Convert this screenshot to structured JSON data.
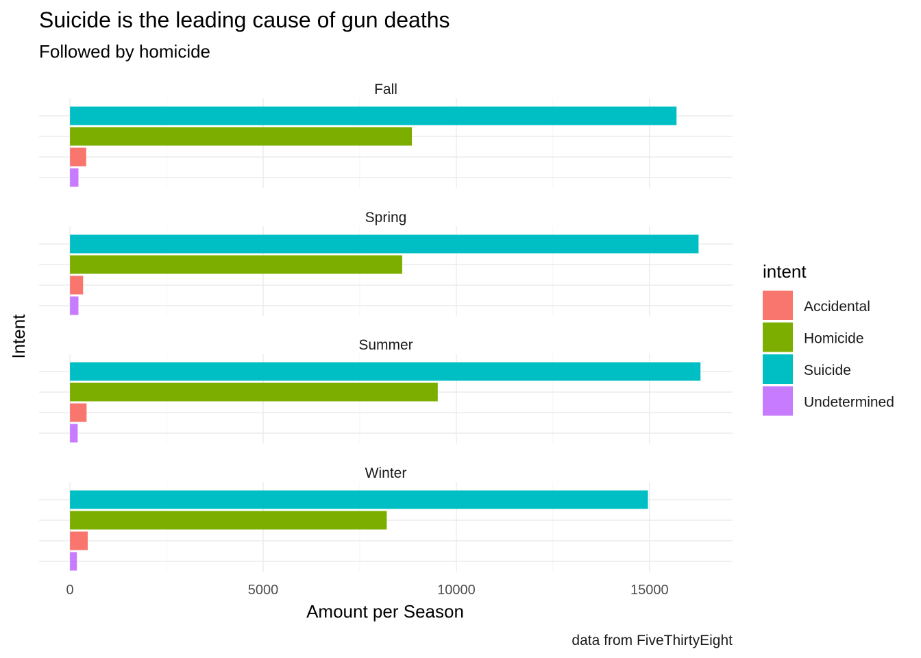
{
  "chart_data": {
    "type": "bar",
    "orientation": "horizontal",
    "title": "Suicide is the leading cause of gun deaths",
    "subtitle": "Followed by homicide",
    "xlabel": "Amount per Season",
    "ylabel": "Intent",
    "caption": "data from FiveThirtyEight",
    "xlim": [
      -800,
      17150
    ],
    "xticks": [
      0,
      5000,
      10000,
      15000
    ],
    "xtick_labels": [
      "0",
      "5000",
      "10000",
      "15000"
    ],
    "grid": true,
    "legend": {
      "title": "intent",
      "position": "right",
      "entries": [
        {
          "label": "Accidental",
          "color": "#F8766D"
        },
        {
          "label": "Homicide",
          "color": "#7CAE00"
        },
        {
          "label": "Suicide",
          "color": "#00BFC4"
        },
        {
          "label": "Undetermined",
          "color": "#C77CFF"
        }
      ]
    },
    "bar_order": [
      "Suicide",
      "Homicide",
      "Accidental",
      "Undetermined"
    ],
    "facets": [
      {
        "label": "Fall",
        "values": {
          "Suicide": 15700,
          "Homicide": 8850,
          "Accidental": 420,
          "Undetermined": 220
        }
      },
      {
        "label": "Spring",
        "values": {
          "Suicide": 16270,
          "Homicide": 8600,
          "Accidental": 340,
          "Undetermined": 220
        }
      },
      {
        "label": "Summer",
        "values": {
          "Suicide": 16320,
          "Homicide": 9520,
          "Accidental": 430,
          "Undetermined": 200
        }
      },
      {
        "label": "Winter",
        "values": {
          "Suicide": 14960,
          "Homicide": 8200,
          "Accidental": 460,
          "Undetermined": 180
        }
      }
    ]
  }
}
